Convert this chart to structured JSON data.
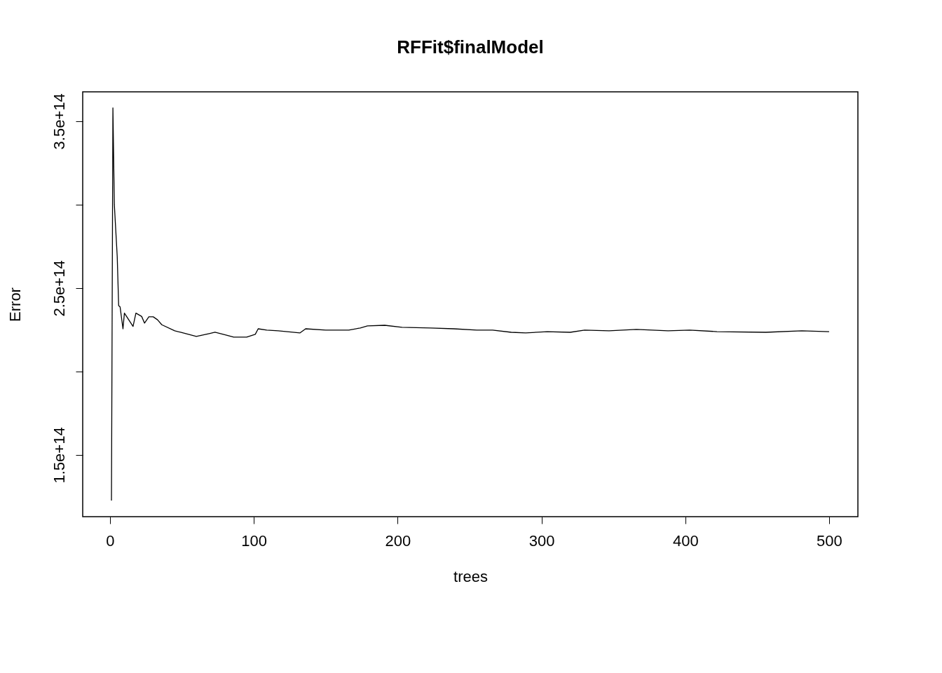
{
  "chart_data": {
    "type": "line",
    "title": "RFFit$finalModel",
    "xlabel": "trees",
    "ylabel": "Error",
    "x": [
      1,
      2,
      3,
      5,
      6,
      7,
      9,
      10,
      13,
      16,
      18,
      22,
      24,
      27,
      30,
      33,
      36,
      45,
      49,
      60,
      69,
      73,
      81,
      86,
      95,
      101,
      103,
      109,
      117,
      132,
      136,
      150,
      166,
      174,
      179,
      191,
      203,
      223,
      239,
      255,
      266,
      279,
      289,
      304,
      320,
      330,
      347,
      366,
      388,
      403,
      422,
      456,
      481,
      500
    ],
    "series": [
      {
        "color": "#000000",
        "values": [
          122700000000000.0,
          358000000000000.0,
          300000000000000.0,
          269000000000000.0,
          239500000000000.0,
          238700000000000.0,
          225600000000000.0,
          235000000000000.0,
          231000000000000.0,
          227000000000000.0,
          235000000000000.0,
          233000000000000.0,
          229000000000000.0,
          232800000000000.0,
          232800000000000.0,
          231000000000000.0,
          228000000000000.0,
          224400000000000.0,
          223500000000000.0,
          221000000000000.0,
          222700000000000.0,
          223500000000000.0,
          221800000000000.0,
          220600000000000.0,
          220600000000000.0,
          222300000000000.0,
          225600000000000.0,
          224800000000000.0,
          224400000000000.0,
          223100000000000.0,
          225600000000000.0,
          224800000000000.0,
          224800000000000.0,
          226100000000000.0,
          227300000000000.0,
          227700000000000.0,
          226500000000000.0,
          226100000000000.0,
          225600000000000.0,
          224800000000000.0,
          224800000000000.0,
          223500000000000.0,
          223100000000000.0,
          223900000000000.0,
          223500000000000.0,
          224800000000000.0,
          224400000000000.0,
          225200000000000.0,
          224400000000000.0,
          224800000000000.0,
          223900000000000.0,
          223500000000000.0,
          224400000000000.0,
          223900000000000.0
        ]
      }
    ],
    "xlim": [
      -19,
      520
    ],
    "ylim": [
      113000000000000.0,
      367600000000000.0
    ],
    "xticks": [
      0,
      100,
      200,
      300,
      400,
      500
    ],
    "yticks": [
      {
        "value": 150000000000000.0,
        "label": "1.5e+14"
      },
      {
        "value": 200000000000000.0,
        "label": null
      },
      {
        "value": 250000000000000.0,
        "label": "2.5e+14"
      },
      {
        "value": 300000000000000.0,
        "label": null
      },
      {
        "value": 350000000000000.0,
        "label": "3.5e+14"
      }
    ],
    "grid": false
  }
}
